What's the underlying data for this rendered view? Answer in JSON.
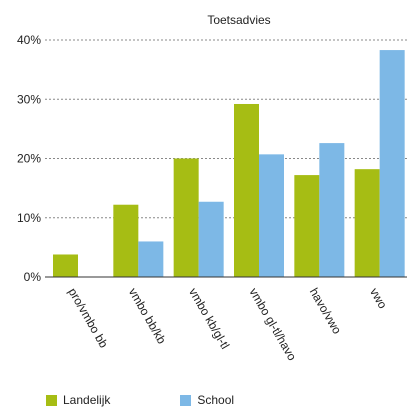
{
  "chart_data": {
    "type": "bar",
    "title": "Toetsadvies",
    "xlabel": "",
    "ylabel": "",
    "categories": [
      "pro/vmbo bb",
      "vmbo bb/kb",
      "vmbo kb/gl-tl",
      "vmbo gl-tl/havo",
      "havo/vwo",
      "vwo"
    ],
    "series": [
      {
        "name": "Landelijk",
        "color": "#a6bd14",
        "values": [
          3.8,
          12.2,
          20.0,
          29.2,
          17.2,
          18.2
        ]
      },
      {
        "name": "School",
        "color": "#7db8e6",
        "values": [
          0.0,
          6.0,
          12.7,
          20.7,
          22.6,
          38.3
        ]
      }
    ],
    "ylim": [
      0,
      40
    ],
    "yticks": [
      "0%",
      "10%",
      "20%",
      "30%",
      "40%"
    ],
    "grid": true,
    "legend_position": "bottom-left"
  }
}
